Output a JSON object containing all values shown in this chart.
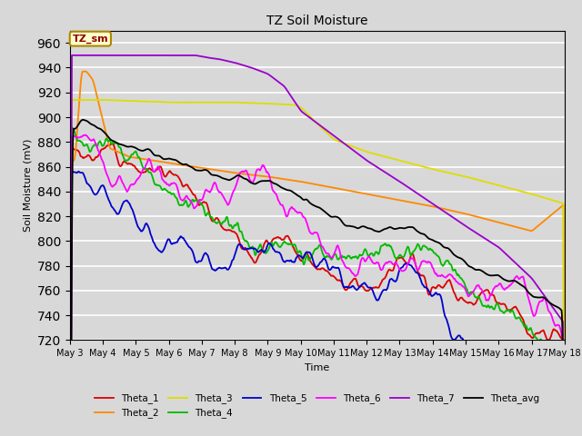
{
  "title": "TZ Soil Moisture",
  "xlabel": "Time",
  "ylabel": "Soil Moisture (mV)",
  "ylim": [
    720,
    970
  ],
  "yticks": [
    720,
    740,
    760,
    780,
    800,
    820,
    840,
    860,
    880,
    900,
    920,
    940,
    960
  ],
  "background_color": "#d8d8d8",
  "legend_label": "TZ_sm",
  "series_colors": {
    "Theta_1": "#dd0000",
    "Theta_2": "#ff8800",
    "Theta_3": "#dddd00",
    "Theta_4": "#00bb00",
    "Theta_5": "#0000cc",
    "Theta_6": "#ff00ff",
    "Theta_7": "#9900cc",
    "Theta_avg": "#000000"
  },
  "x_tick_labels": [
    "May 3",
    "May 4",
    "May 5",
    "May 6",
    "May 7",
    "May 8",
    "May 9",
    "May 10",
    "May 11",
    "May 12",
    "May 13",
    "May 14",
    "May 15",
    "May 16",
    "May 17",
    "May 18"
  ],
  "x_tick_positions": [
    0,
    1,
    2,
    3,
    4,
    5,
    6,
    7,
    8,
    9,
    10,
    11,
    12,
    13,
    14,
    15
  ]
}
